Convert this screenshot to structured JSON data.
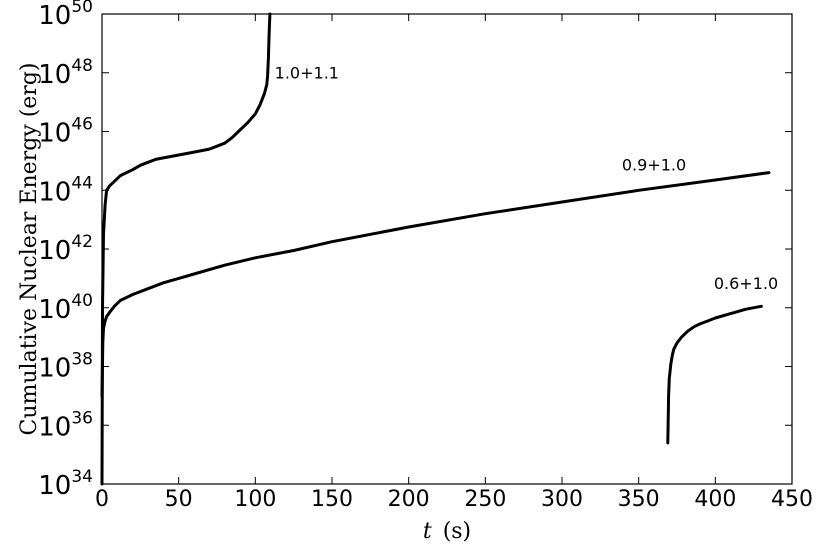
{
  "chart_data": {
    "type": "line",
    "title": "",
    "xlabel_var": "t",
    "xlabel_unit": "(s)",
    "ylabel": "Cumulative Nuclear Energy (erg)",
    "xlim": [
      0,
      450
    ],
    "ylim_log10": [
      34,
      50
    ],
    "yscale": "log",
    "grid": false,
    "x_ticks": [
      "0",
      "50",
      "100",
      "150",
      "200",
      "250",
      "300",
      "350",
      "400",
      "450"
    ],
    "y_tick_base": "10",
    "y_tick_exps": [
      "34",
      "36",
      "38",
      "40",
      "42",
      "44",
      "46",
      "48",
      "50"
    ],
    "series": [
      {
        "name": "1.0+1.1",
        "x": [
          0.0,
          0.3,
          1,
          2,
          3,
          5,
          8,
          12,
          16,
          20,
          25,
          30,
          35,
          40,
          50,
          60,
          70,
          75,
          80,
          85,
          90,
          95,
          100,
          103,
          106,
          107.5,
          108,
          108.5,
          109,
          109.5
        ],
        "log10_y": [
          34.0,
          40.0,
          42.5,
          43.5,
          44.0,
          44.15,
          44.3,
          44.5,
          44.6,
          44.7,
          44.85,
          44.95,
          45.05,
          45.1,
          45.2,
          45.3,
          45.4,
          45.5,
          45.6,
          45.8,
          46.05,
          46.3,
          46.6,
          46.9,
          47.3,
          47.6,
          47.9,
          48.5,
          49.3,
          50.0
        ]
      },
      {
        "name": "0.9+1.0",
        "x": [
          0,
          0.5,
          1,
          2,
          3,
          5,
          8,
          12,
          16,
          20,
          30,
          40,
          50,
          60,
          80,
          100,
          125,
          150,
          200,
          250,
          300,
          350,
          400,
          435
        ],
        "log10_y": [
          37.0,
          38.8,
          39.3,
          39.55,
          39.7,
          39.85,
          40.05,
          40.25,
          40.35,
          40.45,
          40.65,
          40.85,
          41.0,
          41.15,
          41.45,
          41.7,
          41.95,
          42.25,
          42.75,
          43.2,
          43.6,
          44.0,
          44.35,
          44.6
        ]
      },
      {
        "name": "0.6+1.0",
        "x": [
          369,
          369.2,
          369.5,
          370,
          371,
          372,
          373,
          375,
          378,
          382,
          386,
          390,
          395,
          400,
          410,
          420,
          430
        ],
        "log10_y": [
          35.4,
          36.0,
          37.0,
          37.6,
          38.1,
          38.4,
          38.6,
          38.8,
          39.0,
          39.2,
          39.35,
          39.45,
          39.55,
          39.65,
          39.8,
          39.95,
          40.05
        ]
      }
    ]
  }
}
